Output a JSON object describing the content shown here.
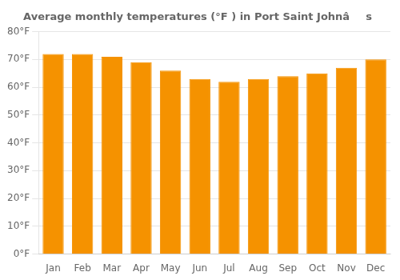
{
  "chart_data": {
    "type": "bar",
    "title": "Average monthly temperatures (°F ) in Port Saint Johnâs",
    "categories": [
      "Jan",
      "Feb",
      "Mar",
      "Apr",
      "May",
      "Jun",
      "Jul",
      "Aug",
      "Sep",
      "Oct",
      "Nov",
      "Dec"
    ],
    "values": [
      72,
      72,
      71,
      69,
      66,
      63,
      62,
      63,
      64,
      65,
      67,
      70
    ],
    "color": "#F59200",
    "ylim": [
      0,
      80
    ],
    "yticks": [
      {
        "value": 0,
        "label": "0°F"
      },
      {
        "value": 10,
        "label": "10°F"
      },
      {
        "value": 20,
        "label": "20°F"
      },
      {
        "value": 30,
        "label": "30°F"
      },
      {
        "value": 40,
        "label": "40°F"
      },
      {
        "value": 50,
        "label": "50°F"
      },
      {
        "value": 60,
        "label": "60°F"
      },
      {
        "value": 70,
        "label": "70°F"
      },
      {
        "value": 80,
        "label": "80°F"
      }
    ],
    "grid": true
  }
}
